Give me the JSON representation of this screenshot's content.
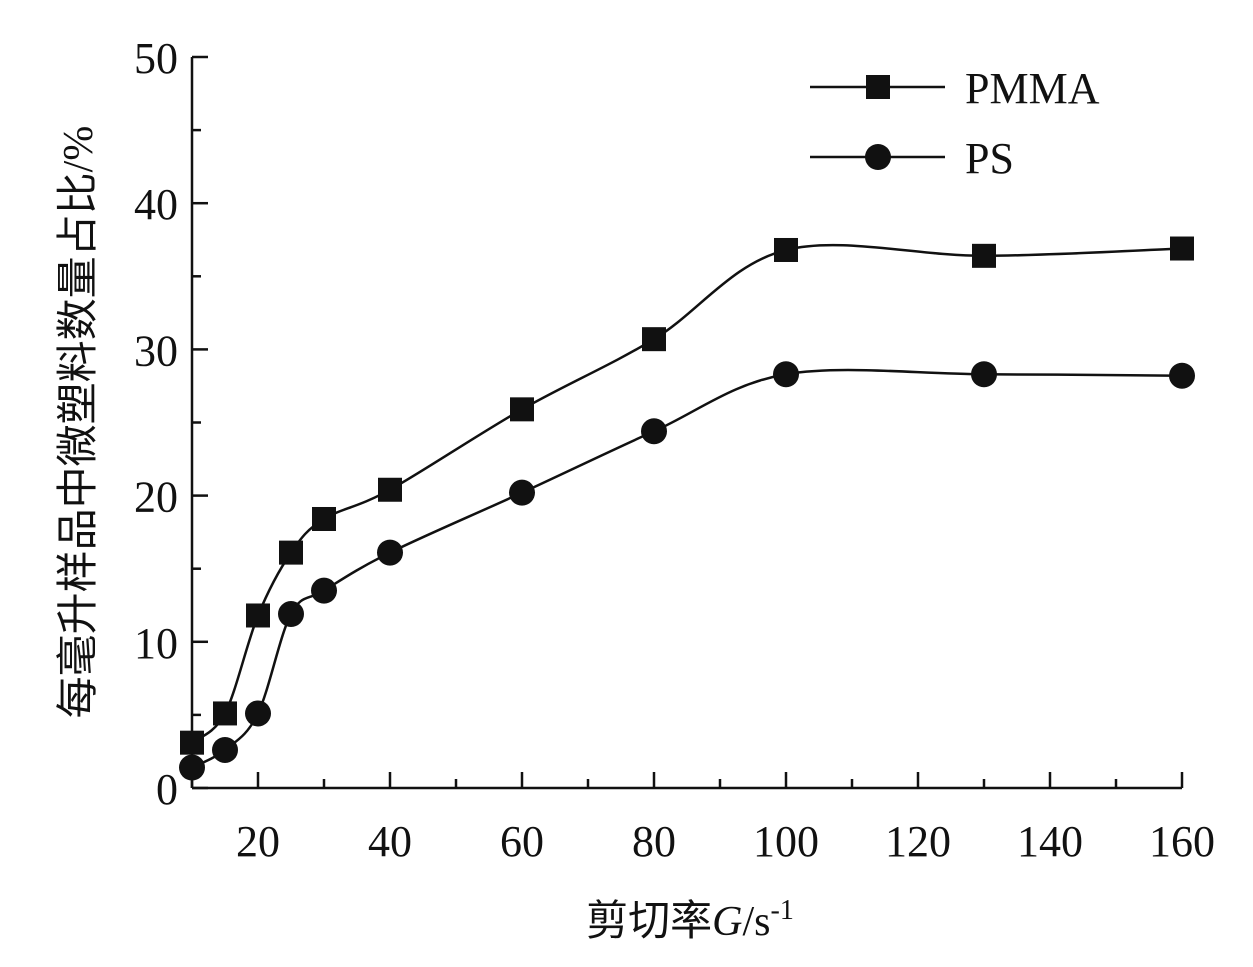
{
  "chart_data": {
    "type": "line",
    "xlabel": {
      "main": "剪切率",
      "symbol": "G",
      "slash": "/",
      "unit": "s",
      "exponent": "-1"
    },
    "ylabel": "每毫升样品中微塑料数量占比/%",
    "xlim": [
      10,
      160
    ],
    "ylim": [
      0,
      50
    ],
    "x_ticks": [
      20,
      40,
      60,
      80,
      100,
      120,
      140,
      160
    ],
    "y_ticks": [
      0,
      10,
      20,
      30,
      40,
      50
    ],
    "grid": false,
    "legend_position": "top-right",
    "series": [
      {
        "name": "PMMA",
        "marker": "square",
        "x": [
          10,
          15,
          20,
          25,
          30,
          40,
          60,
          80,
          100,
          130,
          160
        ],
        "y": [
          3.1,
          5.1,
          11.8,
          16.1,
          18.4,
          20.4,
          25.9,
          30.7,
          36.8,
          36.4,
          36.9
        ]
      },
      {
        "name": "PS",
        "marker": "circle",
        "x": [
          10,
          15,
          20,
          25,
          30,
          40,
          60,
          80,
          100,
          130,
          160
        ],
        "y": [
          1.4,
          2.6,
          5.1,
          11.9,
          13.5,
          16.1,
          20.2,
          24.4,
          28.3,
          28.3,
          28.2
        ]
      }
    ],
    "colors": {
      "line": "#111111",
      "marker": "#111111",
      "axis": "#111111"
    }
  }
}
